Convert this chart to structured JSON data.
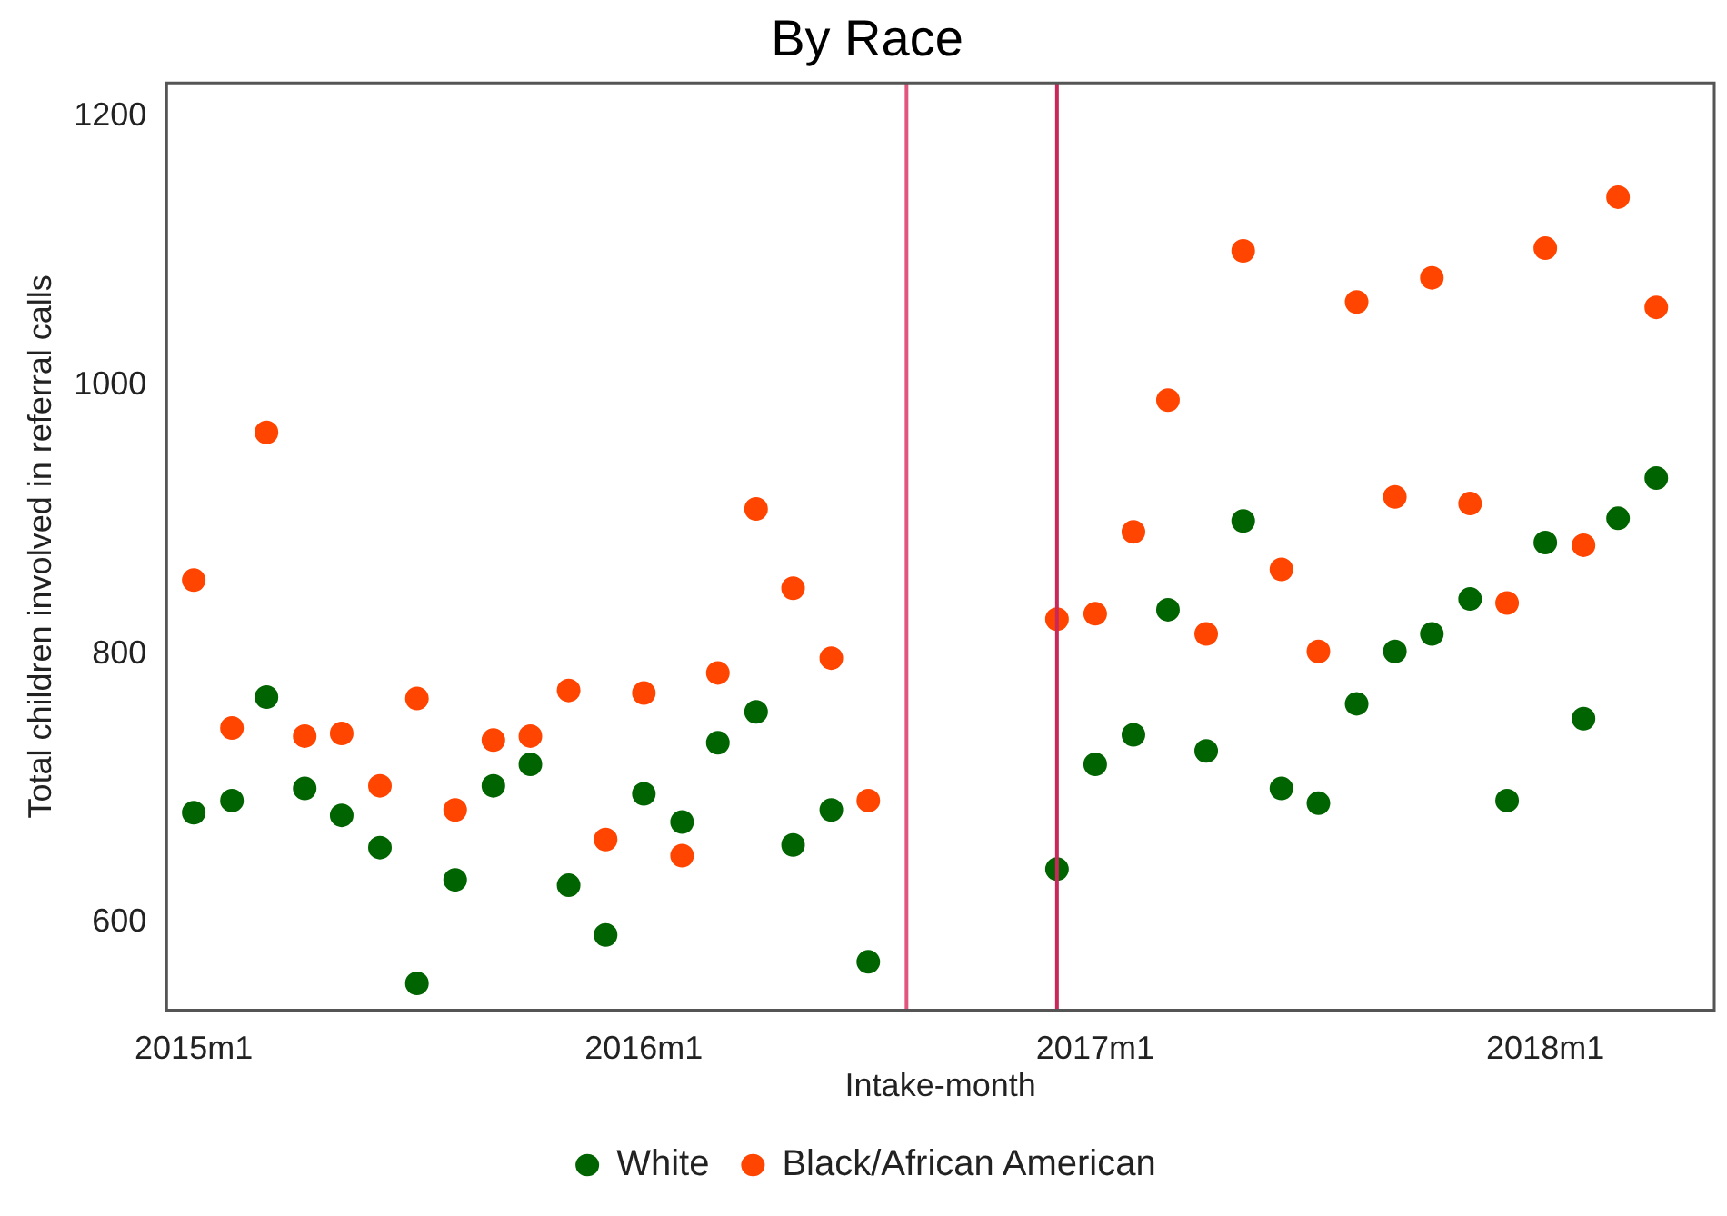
{
  "chart_data": {
    "type": "scatter",
    "title": "By Race",
    "xlabel": "Intake-month",
    "ylabel": "Total children involved in referral calls",
    "x": [
      "2015-01",
      "2015-02",
      "2015-03",
      "2015-04",
      "2015-05",
      "2015-06",
      "2015-07",
      "2015-08",
      "2015-09",
      "2015-10",
      "2015-11",
      "2015-12",
      "2016-01",
      "2016-02",
      "2016-03",
      "2016-04",
      "2016-05",
      "2016-06",
      "2016-07",
      "2016-12",
      "2017-01",
      "2017-02",
      "2017-03",
      "2017-04",
      "2017-05",
      "2017-06",
      "2017-07",
      "2017-08",
      "2017-09",
      "2017-10",
      "2017-11",
      "2017-12",
      "2018-01",
      "2018-02",
      "2018-03",
      "2018-04"
    ],
    "series": [
      {
        "name": "White",
        "color": "#006400",
        "values": [
          682,
          691,
          768,
          700,
          680,
          656,
          555,
          632,
          702,
          718,
          628,
          591,
          696,
          675,
          734,
          757,
          658,
          684,
          571,
          640,
          718,
          740,
          833,
          728,
          899,
          700,
          689,
          763,
          802,
          815,
          841,
          691,
          883,
          752,
          901,
          931
        ]
      },
      {
        "name": "Black/African American",
        "color": "#ff4500",
        "values": [
          855,
          745,
          965,
          739,
          741,
          702,
          767,
          684,
          736,
          739,
          773,
          662,
          771,
          650,
          786,
          908,
          849,
          797,
          691,
          826,
          830,
          891,
          989,
          815,
          1100,
          863,
          802,
          1062,
          917,
          1080,
          912,
          838,
          1102,
          881,
          1140,
          1058
        ]
      }
    ],
    "xlim": [
      "2014-12-10",
      "2018-05-18"
    ],
    "xticks": [
      {
        "value": "2015-01",
        "label": "2015m1"
      },
      {
        "value": "2016-01",
        "label": "2016m1"
      },
      {
        "value": "2017-01",
        "label": "2017m1"
      },
      {
        "value": "2018-01",
        "label": "2018m1"
      }
    ],
    "ylim": [
      535,
      1225
    ],
    "yticks": [
      600,
      800,
      1000,
      1200
    ],
    "ref_lines": [
      {
        "axis": "x",
        "value": "2016-08",
        "color": "#e0567e"
      },
      {
        "axis": "x",
        "value": "2016-12",
        "color": "#c8285a"
      }
    ],
    "grid": false,
    "legend": "bottom",
    "marker": "circle"
  }
}
